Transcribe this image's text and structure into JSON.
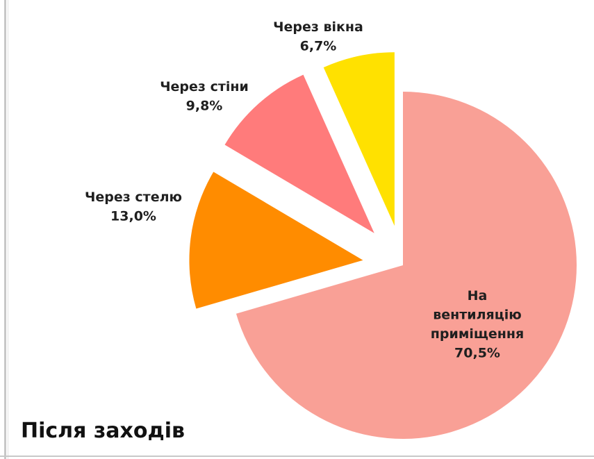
{
  "caption": "Після заходів",
  "chart_data": {
    "type": "pie",
    "exploded": true,
    "slices": [
      {
        "label_lines": [
          "На",
          "вентиляцію",
          "приміщення"
        ],
        "value_label": "70,5%",
        "value": 70.5,
        "color": "#f9a096"
      },
      {
        "label_lines": [
          "Через стелю"
        ],
        "value_label": "13,0%",
        "value": 13.0,
        "color": "#ff8c00"
      },
      {
        "label_lines": [
          "Через стіни"
        ],
        "value_label": "9,8%",
        "value": 9.8,
        "color": "#ff7b7b"
      },
      {
        "label_lines": [
          "Через вікна"
        ],
        "value_label": "6,7%",
        "value": 6.7,
        "color": "#ffe100"
      }
    ]
  }
}
